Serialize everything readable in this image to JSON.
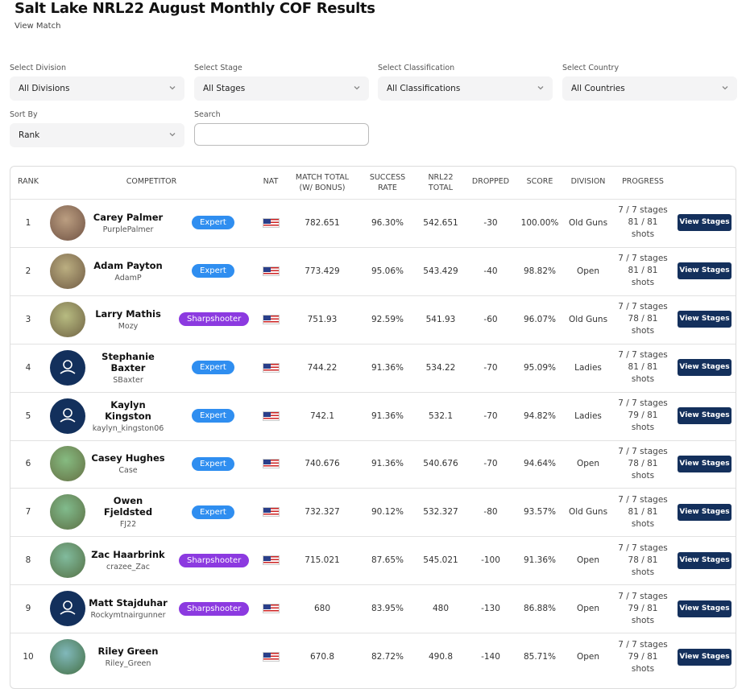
{
  "header": {
    "title": "Salt Lake NRL22 August Monthly COF Results",
    "link": "View Match"
  },
  "filters": [
    {
      "label": "Select Division",
      "value": "All Divisions"
    },
    {
      "label": "Select Stage",
      "value": "All Stages"
    },
    {
      "label": "Select Classification",
      "value": "All Classifications"
    },
    {
      "label": "Select Country",
      "value": "All Countries"
    },
    {
      "label": "Sort By",
      "value": "Rank"
    }
  ],
  "search": {
    "label": "Search"
  },
  "table": {
    "columns": [
      "RANK",
      "COMPETITOR",
      "NAT",
      "MATCH TOTAL (W/ BONUS)",
      "SUCCESS RATE",
      "NRL22 TOTAL",
      "DROPPED",
      "SCORE",
      "DIVISION",
      "PROGRESS"
    ],
    "action": "View Stages",
    "rows": [
      {
        "rank": "1",
        "name": "Carey Palmer",
        "username": "PurplePalmer",
        "avatar": "photo",
        "class": "Expert",
        "class_color": "#2f8ef0",
        "match_total": "782.651",
        "success_rate": "96.30%",
        "nrl22_total": "542.651",
        "dropped": "-30",
        "score": "100.00%",
        "division": "Old Guns",
        "stages": "7 / 7 stages",
        "shots": "81 / 81 shots"
      },
      {
        "rank": "2",
        "name": "Adam Payton",
        "username": "AdamP",
        "avatar": "photo",
        "class": "Expert",
        "class_color": "#2f8ef0",
        "match_total": "773.429",
        "success_rate": "95.06%",
        "nrl22_total": "543.429",
        "dropped": "-40",
        "score": "98.82%",
        "division": "Open",
        "stages": "7 / 7 stages",
        "shots": "81 / 81 shots"
      },
      {
        "rank": "3",
        "name": "Larry Mathis",
        "username": "Mozy",
        "avatar": "photo",
        "class": "Sharpshooter",
        "class_color": "#8c3ae0",
        "match_total": "751.93",
        "success_rate": "92.59%",
        "nrl22_total": "541.93",
        "dropped": "-60",
        "score": "96.07%",
        "division": "Old Guns",
        "stages": "7 / 7 stages",
        "shots": "78 / 81 shots"
      },
      {
        "rank": "4",
        "name": "Stephanie Baxter",
        "username": "SBaxter",
        "avatar": "default",
        "class": "Expert",
        "class_color": "#2f8ef0",
        "match_total": "744.22",
        "success_rate": "91.36%",
        "nrl22_total": "534.22",
        "dropped": "-70",
        "score": "95.09%",
        "division": "Ladies",
        "stages": "7 / 7 stages",
        "shots": "81 / 81 shots"
      },
      {
        "rank": "5",
        "name": "Kaylyn Kingston",
        "username": "kaylyn_kingston06",
        "avatar": "default",
        "class": "Expert",
        "class_color": "#2f8ef0",
        "match_total": "742.1",
        "success_rate": "91.36%",
        "nrl22_total": "532.1",
        "dropped": "-70",
        "score": "94.82%",
        "division": "Ladies",
        "stages": "7 / 7 stages",
        "shots": "79 / 81 shots"
      },
      {
        "rank": "6",
        "name": "Casey Hughes",
        "username": "Case",
        "avatar": "photo",
        "class": "Expert",
        "class_color": "#2f8ef0",
        "match_total": "740.676",
        "success_rate": "91.36%",
        "nrl22_total": "540.676",
        "dropped": "-70",
        "score": "94.64%",
        "division": "Open",
        "stages": "7 / 7 stages",
        "shots": "78 / 81 shots"
      },
      {
        "rank": "7",
        "name": "Owen Fjeldsted",
        "username": "FJ22",
        "avatar": "photo",
        "class": "Expert",
        "class_color": "#2f8ef0",
        "match_total": "732.327",
        "success_rate": "90.12%",
        "nrl22_total": "532.327",
        "dropped": "-80",
        "score": "93.57%",
        "division": "Old Guns",
        "stages": "7 / 7 stages",
        "shots": "81 / 81 shots"
      },
      {
        "rank": "8",
        "name": "Zac Haarbrink",
        "username": "crazee_Zac",
        "avatar": "photo",
        "class": "Sharpshooter",
        "class_color": "#8c3ae0",
        "match_total": "715.021",
        "success_rate": "87.65%",
        "nrl22_total": "545.021",
        "dropped": "-100",
        "score": "91.36%",
        "division": "Open",
        "stages": "7 / 7 stages",
        "shots": "78 / 81 shots"
      },
      {
        "rank": "9",
        "name": "Matt Stajduhar",
        "username": "Rockymtnairgunner",
        "avatar": "default",
        "class": "Sharpshooter",
        "class_color": "#8c3ae0",
        "match_total": "680",
        "success_rate": "83.95%",
        "nrl22_total": "480",
        "dropped": "-130",
        "score": "86.88%",
        "division": "Open",
        "stages": "7 / 7 stages",
        "shots": "79 / 81 shots"
      },
      {
        "rank": "10",
        "name": "Riley Green",
        "username": "Riley_Green",
        "avatar": "photo",
        "match_total": "670.8",
        "success_rate": "82.72%",
        "nrl22_total": "490.8",
        "dropped": "-140",
        "score": "85.71%",
        "division": "Open",
        "stages": "7 / 7 stages",
        "shots": "79 / 81 shots"
      }
    ]
  }
}
